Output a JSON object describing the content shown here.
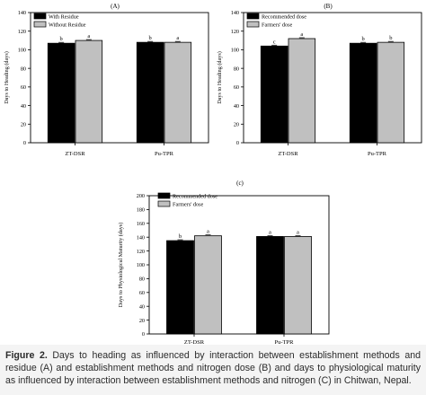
{
  "figure": {
    "caption_label": "Figure 2.",
    "caption_text": "Days to heading as influenced by interaction between establishment methods and residue (A) and establishment methods and nitrogen dose (B) and days to physiological maturity as influenced by interaction between establishment methods and nitrogen (C) in Chitwan, Nepal."
  },
  "colors": {
    "series_dark": "#000000",
    "series_light": "#c0c0c0",
    "axis": "#000000",
    "caption_band": "#f4f4f4"
  },
  "chart_data": [
    {
      "id": "panel-a",
      "panel_label": "(A)",
      "type": "bar",
      "categories": [
        "ZT-DSR",
        "Pu-TPR"
      ],
      "series": [
        {
          "name": "With Residue",
          "values": [
            107,
            108
          ],
          "letters": [
            "b",
            "b"
          ]
        },
        {
          "name": "Without Residue",
          "values": [
            110,
            108
          ],
          "letters": [
            "a",
            "a"
          ]
        }
      ],
      "ylabel": "Days to Heading (days)",
      "xlabel": "",
      "ylim": [
        0,
        140
      ],
      "yticks": [
        0,
        20,
        40,
        60,
        80,
        100,
        120,
        140
      ],
      "legend": "top-left",
      "grid": false
    },
    {
      "id": "panel-b",
      "panel_label": "(B)",
      "type": "bar",
      "categories": [
        "ZT-DSR",
        "Pu-TPR"
      ],
      "series": [
        {
          "name": "Recommended dose",
          "values": [
            104,
            107
          ],
          "letters": [
            "c",
            "b"
          ]
        },
        {
          "name": "Farmers' dose",
          "values": [
            112,
            108
          ],
          "letters": [
            "a",
            "b"
          ]
        }
      ],
      "ylabel": "Days to Heading (days)",
      "xlabel": "",
      "ylim": [
        0,
        140
      ],
      "yticks": [
        0,
        20,
        40,
        60,
        80,
        100,
        120,
        140
      ],
      "legend": "top-left",
      "grid": false
    },
    {
      "id": "panel-c",
      "panel_label": "(c)",
      "type": "bar",
      "categories": [
        "ZT-DSR",
        "Pu-TPR"
      ],
      "series": [
        {
          "name": "Recommended dose",
          "values": [
            135,
            141
          ],
          "letters": [
            "b",
            "a"
          ]
        },
        {
          "name": "Farmers' dose",
          "values": [
            142,
            141
          ],
          "letters": [
            "a",
            "a"
          ]
        }
      ],
      "ylabel": "Days to Physiological Maturity (days)",
      "xlabel": "",
      "ylim": [
        0,
        200
      ],
      "yticks": [
        0,
        20,
        40,
        60,
        80,
        100,
        120,
        140,
        160,
        180,
        200
      ],
      "legend": "top-left",
      "grid": false
    }
  ]
}
